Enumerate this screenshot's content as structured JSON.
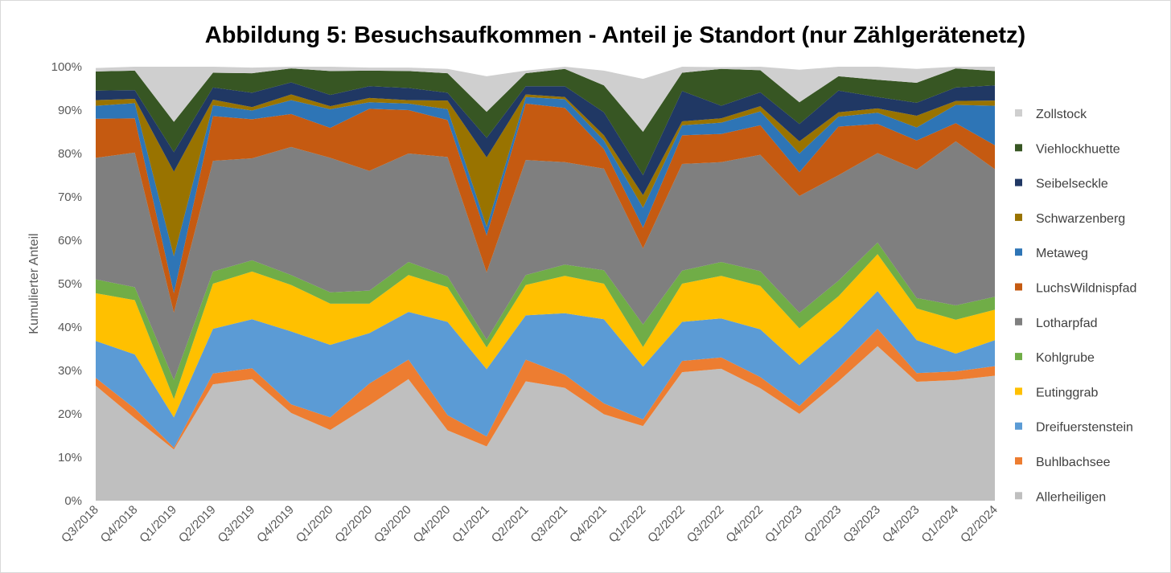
{
  "chart_data": {
    "type": "area",
    "stacked": true,
    "title": "Abbildung 5: Besuchsaufkommen - Anteil je Standort (nur Zählgerätenetz)",
    "xlabel": "",
    "ylabel": "Kumulierter Anteil",
    "ylim": [
      0,
      100
    ],
    "yticks": [
      "0%",
      "10%",
      "20%",
      "30%",
      "40%",
      "50%",
      "60%",
      "70%",
      "80%",
      "90%",
      "100%"
    ],
    "grid": false,
    "legend_position": "right",
    "categories": [
      "Q3/2018",
      "Q4/2018",
      "Q1/2019",
      "Q2/2019",
      "Q3/2019",
      "Q4/2019",
      "Q1/2020",
      "Q2/2020",
      "Q3/2020",
      "Q4/2020",
      "Q1/2021",
      "Q2/2021",
      "Q3/2021",
      "Q4/2021",
      "Q1/2022",
      "Q2/2022",
      "Q3/2022",
      "Q4/2022",
      "Q1/2023",
      "Q2/2023",
      "Q3/2023",
      "Q4/2023",
      "Q1/2024",
      "Q2/2024"
    ],
    "series": [
      {
        "name": "Allerheiligen",
        "color": "#bfbfbf",
        "values": [
          26.5,
          19.0,
          11.8,
          26.8,
          28.0,
          20.2,
          16.3,
          22.0,
          28.0,
          16.2,
          12.5,
          27.5,
          26.0,
          19.9,
          17.2,
          29.6,
          30.4,
          25.9,
          20.0,
          27.5,
          35.6,
          27.4,
          27.8,
          28.8
        ]
      },
      {
        "name": "Buhlbachsee",
        "color": "#ed7d31",
        "values": [
          1.8,
          2.2,
          0.4,
          2.5,
          2.5,
          2.0,
          2.9,
          5.0,
          4.5,
          3.5,
          2.3,
          5.0,
          3.0,
          2.5,
          1.5,
          2.6,
          2.6,
          2.6,
          1.8,
          3.0,
          4.0,
          2.0,
          2.0,
          2.2
        ]
      },
      {
        "name": "Dreifuerstenstein",
        "color": "#5b9bd5",
        "values": [
          8.5,
          12.5,
          7.0,
          10.3,
          11.3,
          16.8,
          16.7,
          11.6,
          11.0,
          21.5,
          15.5,
          10.2,
          14.2,
          19.4,
          12.2,
          9.0,
          9.0,
          11.0,
          9.5,
          8.6,
          8.7,
          7.6,
          4.1,
          6.0
        ]
      },
      {
        "name": "Eutinggrab",
        "color": "#ffc000",
        "values": [
          11.0,
          12.5,
          4.2,
          10.4,
          11.0,
          10.7,
          9.5,
          6.8,
          8.5,
          8.0,
          5.0,
          7.0,
          8.6,
          8.2,
          4.5,
          8.8,
          9.8,
          10.0,
          8.4,
          8.0,
          8.5,
          7.3,
          7.8,
          7.0
        ]
      },
      {
        "name": "Kohlgrube",
        "color": "#70ad47",
        "values": [
          3.2,
          3.0,
          4.4,
          2.8,
          2.6,
          2.3,
          2.6,
          3.0,
          3.0,
          2.5,
          1.8,
          2.3,
          2.6,
          3.1,
          5.2,
          3.0,
          3.2,
          3.4,
          3.6,
          3.6,
          2.7,
          2.4,
          3.3,
          3.0
        ]
      },
      {
        "name": "Lotharpfad",
        "color": "#7f7f7f",
        "values": [
          28.0,
          31.0,
          15.5,
          25.5,
          23.5,
          29.5,
          31.0,
          27.6,
          25.0,
          27.5,
          15.5,
          26.5,
          23.6,
          23.4,
          17.5,
          24.6,
          23.0,
          26.8,
          26.9,
          24.3,
          20.6,
          29.6,
          37.8,
          29.4
        ]
      },
      {
        "name": "LuchsWildnispfad",
        "color": "#c55a11",
        "values": [
          9.0,
          7.9,
          4.5,
          10.3,
          9.0,
          7.6,
          6.9,
          14.3,
          10.0,
          8.5,
          8.5,
          13.0,
          12.5,
          4.5,
          4.8,
          6.6,
          6.5,
          6.8,
          5.5,
          11.2,
          6.7,
          6.7,
          4.2,
          5.5
        ]
      },
      {
        "name": "Metaweg",
        "color": "#2e75b6",
        "values": [
          3.0,
          3.5,
          8.5,
          2.5,
          2.0,
          3.2,
          4.3,
          1.5,
          1.5,
          2.5,
          2.0,
          1.5,
          2.0,
          2.0,
          4.6,
          2.3,
          2.6,
          3.2,
          4.3,
          2.3,
          2.6,
          3.0,
          4.2,
          9.1
        ]
      },
      {
        "name": "Schwarzenberg",
        "color": "#997300",
        "values": [
          1.3,
          1.0,
          19.5,
          1.3,
          0.8,
          1.3,
          0.7,
          1.0,
          0.8,
          2.0,
          16.0,
          0.6,
          0.5,
          1.2,
          2.9,
          0.9,
          1.0,
          1.2,
          2.8,
          1.0,
          1.0,
          2.7,
          0.9,
          1.2
        ]
      },
      {
        "name": "Seibelseckle",
        "color": "#203864",
        "values": [
          2.2,
          2.0,
          4.5,
          2.8,
          3.3,
          2.8,
          2.6,
          2.7,
          2.8,
          1.8,
          4.5,
          1.9,
          2.5,
          5.3,
          4.6,
          7.0,
          2.9,
          3.2,
          4.0,
          5.0,
          2.6,
          3.0,
          3.1,
          3.5
        ]
      },
      {
        "name": "Viehlockhuette",
        "color": "#375623",
        "values": [
          4.4,
          4.5,
          7.0,
          3.4,
          4.5,
          3.2,
          5.5,
          3.6,
          3.9,
          4.5,
          6.0,
          3.0,
          4.0,
          6.2,
          10.0,
          4.2,
          8.5,
          5.1,
          5.0,
          3.3,
          4.0,
          4.6,
          4.4,
          3.3
        ]
      },
      {
        "name": "Zollstock",
        "color": "#cfcfcf",
        "values": [
          0.8,
          0.9,
          12.7,
          1.4,
          1.3,
          0.4,
          1.1,
          0.7,
          0.8,
          1.0,
          8.2,
          0.6,
          0.5,
          3.4,
          12.2,
          1.4,
          0.4,
          0.8,
          7.5,
          2.2,
          3.0,
          3.2,
          0.6,
          1.1
        ]
      }
    ]
  }
}
